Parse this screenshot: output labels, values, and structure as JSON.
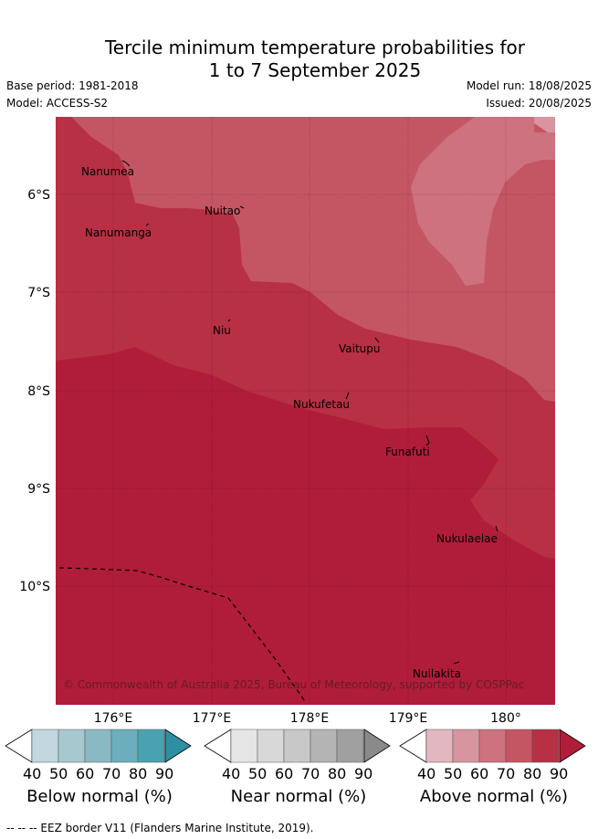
{
  "title_line1": "Tercile minimum temperature probabilities for",
  "title_line2": "1 to 7 September 2025",
  "base_period": "Base period: 1981-2018",
  "model": "Model: ACCESS-S2",
  "model_run": "Model run: 18/08/2025",
  "issued": "Issued: 20/08/2025",
  "lat_labels": [
    "6°S",
    "7°S",
    "8°S",
    "9°S",
    "10°S"
  ],
  "lon_labels": [
    "176°E",
    "177°E",
    "178°E",
    "179°E",
    "180°"
  ],
  "places": [
    "Nanumea",
    "Nuitao",
    "Nanumanga",
    "Niu",
    "Vaitupu",
    "Nukufetau",
    "Funafuti",
    "Nukulaelae",
    "Nuilakita"
  ],
  "copyright": "© Commonwealth of Australia 2025, Bureau of Meteorology, supported by COSPPac",
  "colorbars": [
    {
      "label": "Below normal (%)",
      "ticks": [
        "40",
        "50",
        "60",
        "70",
        "80",
        "90"
      ],
      "colors": [
        "#ffffff",
        "#c0d8de",
        "#a6c9cf",
        "#8ab8c3",
        "#6caebc",
        "#4aa2b1",
        "#2e8fa0"
      ]
    },
    {
      "label": "Near normal (%)",
      "ticks": [
        "40",
        "50",
        "60",
        "70",
        "80",
        "90"
      ],
      "colors": [
        "#ffffff",
        "#e6e6e6",
        "#d8d8d8",
        "#c8c8c8",
        "#b4b4b4",
        "#a0a0a0",
        "#8a8a8a"
      ]
    },
    {
      "label": "Above normal (%)",
      "ticks": [
        "40",
        "50",
        "60",
        "70",
        "80",
        "90"
      ],
      "colors": [
        "#ffffff",
        "#e2b7bf",
        "#d8959f",
        "#cd727e",
        "#c45663",
        "#b83044",
        "#b01d3a"
      ]
    }
  ],
  "eez_legend": "-- -- -- EEZ border V11 (Flanders Marine Institute, 2019).",
  "map_colors": {
    "c60": "#cd727e",
    "c70": "#c45663",
    "c80": "#b83044",
    "c90": "#b01d3a"
  }
}
